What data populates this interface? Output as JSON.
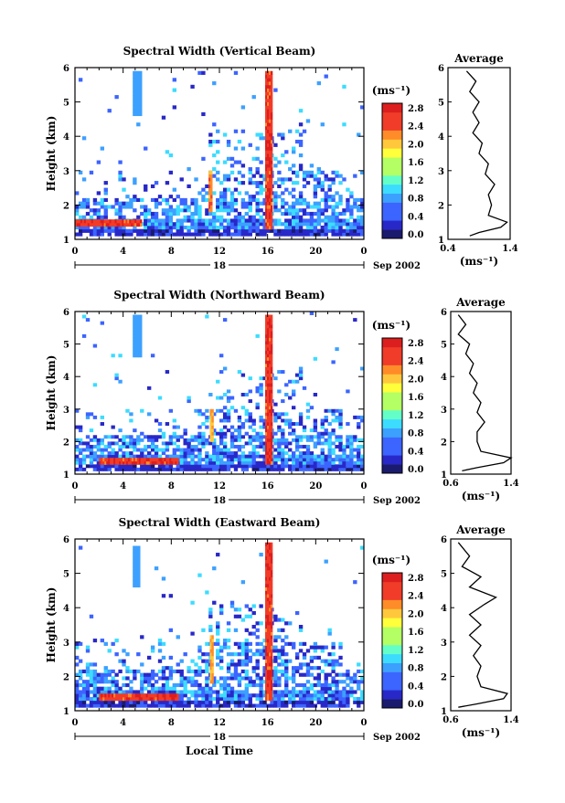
{
  "figure": {
    "date_label": "Sep 2002",
    "day_label": "18",
    "xlabel": "Local Time",
    "avg_title": "Average",
    "unit_label": "(ms⁻¹)"
  },
  "chart_data": [
    {
      "type": "heatmap",
      "title": "Spectral Width (Vertical Beam)",
      "ylabel": "Height (km)",
      "xlim": [
        0,
        24
      ],
      "ylim": [
        1,
        6
      ],
      "xticks": [
        "0",
        "4",
        "8",
        "12",
        "16",
        "20",
        "0"
      ],
      "yticks": [
        "1",
        "2",
        "3",
        "4",
        "5",
        "6"
      ],
      "colorbar": {
        "range": [
          0,
          3.0
        ],
        "ticks": [
          "0.0",
          "0.4",
          "0.8",
          "1.2",
          "1.6",
          "2.0",
          "2.4",
          "2.8"
        ]
      },
      "features": [
        {
          "x": [
            0,
            5.5
          ],
          "y": [
            1.38,
            1.55
          ],
          "value": 2.9
        },
        {
          "x": [
            15.8,
            16.4
          ],
          "y": [
            1.3,
            5.9
          ],
          "value": 2.9
        },
        {
          "x": [
            11.1,
            11.4
          ],
          "y": [
            1.8,
            3.0
          ],
          "value": 2.6
        },
        {
          "x": [
            4.8,
            5.5
          ],
          "y": [
            4.6,
            5.9
          ],
          "value": 1.0
        }
      ],
      "average": {
        "xlim": [
          0.4,
          1.4
        ],
        "xticks": [
          "0.4",
          "1.4"
        ],
        "height": [
          1.1,
          1.2,
          1.35,
          1.5,
          1.7,
          2.0,
          2.3,
          2.6,
          2.9,
          3.2,
          3.5,
          3.8,
          4.1,
          4.4,
          4.7,
          5.0,
          5.3,
          5.6,
          5.9
        ],
        "width": [
          0.75,
          0.9,
          1.25,
          1.35,
          1.05,
          1.1,
          1.05,
          1.15,
          1.0,
          1.05,
          0.9,
          0.95,
          0.8,
          0.9,
          0.8,
          0.9,
          0.75,
          0.85,
          0.7
        ]
      }
    },
    {
      "type": "heatmap",
      "title": "Spectral Width (Northward Beam)",
      "ylabel": "Height (km)",
      "xlim": [
        0,
        24
      ],
      "ylim": [
        1,
        6
      ],
      "xticks": [
        "0",
        "4",
        "8",
        "12",
        "16",
        "20",
        "0"
      ],
      "yticks": [
        "1",
        "2",
        "3",
        "4",
        "5",
        "6"
      ],
      "colorbar": {
        "range": [
          0,
          3.0
        ],
        "ticks": [
          "0.0",
          "0.4",
          "0.8",
          "1.2",
          "1.6",
          "2.0",
          "2.4",
          "2.8"
        ]
      },
      "features": [
        {
          "x": [
            2,
            8.5
          ],
          "y": [
            1.3,
            1.5
          ],
          "value": 2.9
        },
        {
          "x": [
            15.8,
            16.4
          ],
          "y": [
            1.3,
            5.9
          ],
          "value": 2.9
        },
        {
          "x": [
            11.2,
            11.5
          ],
          "y": [
            2.0,
            3.0
          ],
          "value": 2.4
        },
        {
          "x": [
            4.8,
            5.5
          ],
          "y": [
            4.6,
            5.9
          ],
          "value": 1.0
        }
      ],
      "average": {
        "xlim": [
          0.6,
          1.4
        ],
        "xticks": [
          "0.6",
          "1.4"
        ],
        "height": [
          1.1,
          1.2,
          1.35,
          1.5,
          1.7,
          2.0,
          2.3,
          2.6,
          2.9,
          3.2,
          3.5,
          3.8,
          4.1,
          4.4,
          4.7,
          5.0,
          5.3,
          5.6,
          5.9
        ],
        "width": [
          0.75,
          0.95,
          1.3,
          1.4,
          1.0,
          0.95,
          0.95,
          1.05,
          0.95,
          1.0,
          0.9,
          0.95,
          0.85,
          0.9,
          0.8,
          0.85,
          0.7,
          0.8,
          0.7
        ]
      }
    },
    {
      "type": "heatmap",
      "title": "Spectral Width (Eastward Beam)",
      "ylabel": "Height (km)",
      "xlim": [
        0,
        24
      ],
      "ylim": [
        1,
        6
      ],
      "xticks": [
        "0",
        "4",
        "8",
        "12",
        "16",
        "20",
        "0"
      ],
      "yticks": [
        "1",
        "2",
        "3",
        "4",
        "5",
        "6"
      ],
      "colorbar": {
        "range": [
          0,
          3.0
        ],
        "ticks": [
          "0.0",
          "0.4",
          "0.8",
          "1.2",
          "1.6",
          "2.0",
          "2.4",
          "2.8"
        ]
      },
      "features": [
        {
          "x": [
            2,
            8.5
          ],
          "y": [
            1.3,
            1.5
          ],
          "value": 2.9
        },
        {
          "x": [
            15.8,
            16.4
          ],
          "y": [
            1.3,
            5.9
          ],
          "value": 2.9
        },
        {
          "x": [
            11.2,
            11.5
          ],
          "y": [
            1.8,
            3.2
          ],
          "value": 2.4
        },
        {
          "x": [
            4.8,
            5.4
          ],
          "y": [
            4.6,
            5.8
          ],
          "value": 1.0
        }
      ],
      "average": {
        "xlim": [
          0.6,
          1.4
        ],
        "xticks": [
          "0.6",
          "1.4"
        ],
        "height": [
          1.1,
          1.2,
          1.35,
          1.5,
          1.7,
          2.0,
          2.3,
          2.6,
          2.9,
          3.2,
          3.5,
          3.8,
          4.1,
          4.3,
          4.6,
          4.9,
          5.2,
          5.5,
          5.9
        ],
        "width": [
          0.7,
          0.95,
          1.3,
          1.35,
          1.0,
          0.95,
          1.0,
          0.9,
          1.0,
          0.85,
          1.0,
          0.85,
          1.05,
          1.2,
          0.85,
          1.0,
          0.75,
          0.85,
          0.7
        ]
      }
    }
  ]
}
